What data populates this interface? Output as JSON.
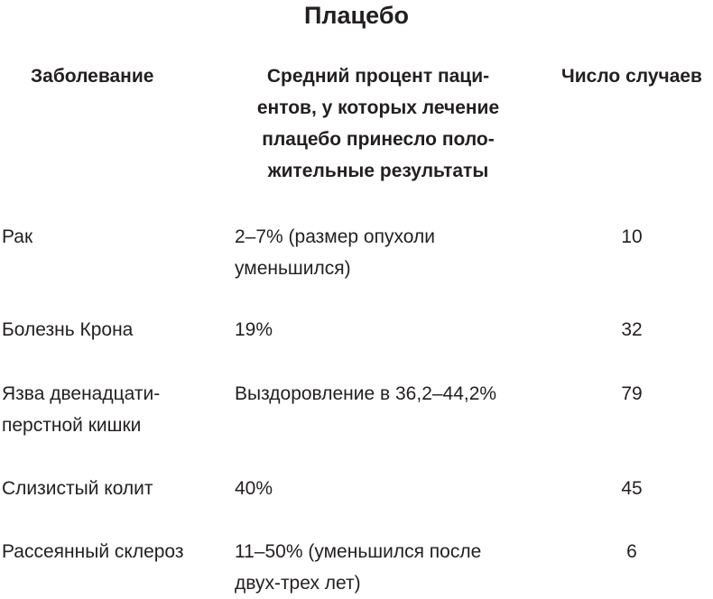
{
  "title": "Плацебо",
  "table": {
    "headers": {
      "disease": "Заболевание",
      "percent_lines": [
        "Средний процент паци-",
        "ентов, у которых лечение",
        "плацебо принесло поло-",
        "жительные результаты"
      ],
      "cases": "Число случаев"
    },
    "rows": [
      {
        "disease_lines": [
          "Рак"
        ],
        "percent_lines": [
          "2–7% (размер опухоли",
          "уменьшился)"
        ],
        "cases": "10"
      },
      {
        "disease_lines": [
          "Болезнь Крона"
        ],
        "percent_lines": [
          "19%"
        ],
        "cases": "32"
      },
      {
        "disease_lines": [
          "Язва двенадцати-",
          "перстной кишки"
        ],
        "percent_lines": [
          "Выздоровление в 36,2–44,2%"
        ],
        "cases": "79"
      },
      {
        "disease_lines": [
          "Слизистый колит"
        ],
        "percent_lines": [
          "40%"
        ],
        "cases": "45"
      },
      {
        "disease_lines": [
          "Рассеянный склероз"
        ],
        "percent_lines": [
          "11–50% (уменьшился после",
          "двух-трех лет)"
        ],
        "cases": "6"
      }
    ]
  }
}
